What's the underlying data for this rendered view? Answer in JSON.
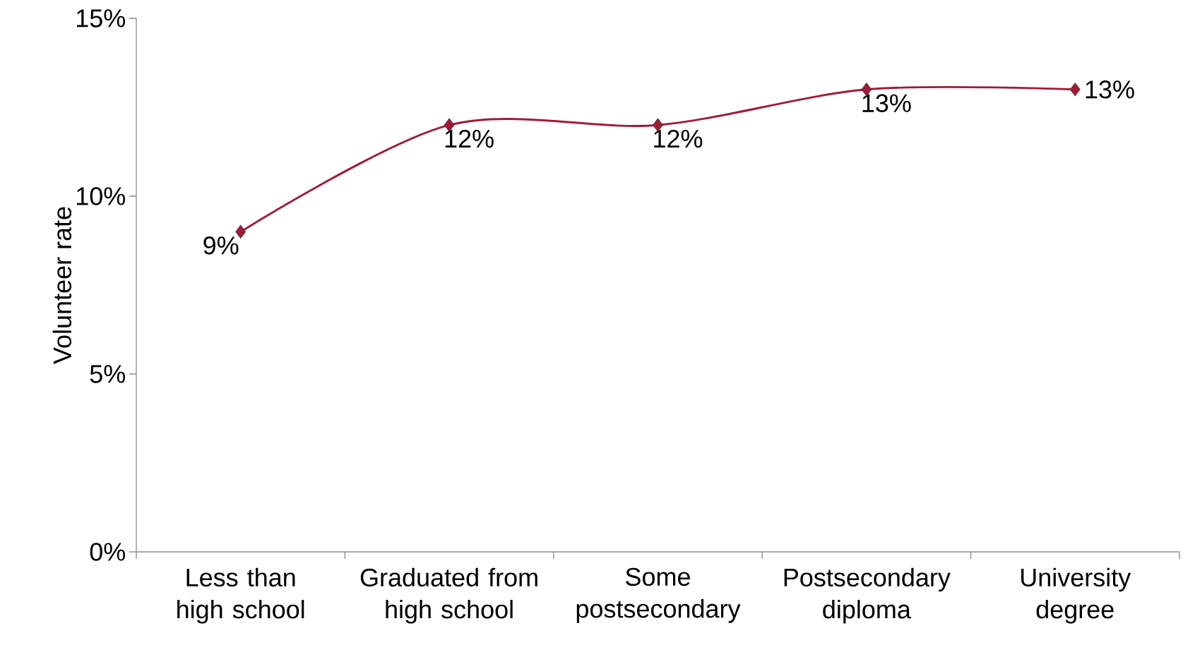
{
  "chart_data": {
    "type": "line",
    "ylabel": "Volunteer rate",
    "categories": [
      "Less than high school",
      "Graduated from high school",
      "Some postsecondary",
      "Postsecondary diploma",
      "University degree"
    ],
    "series": [
      {
        "color": "#a31a36",
        "values": [
          9,
          12,
          12,
          13,
          13
        ],
        "value_labels": [
          "9%",
          "12%",
          "12%",
          "13%",
          "13%"
        ]
      }
    ],
    "ylim": [
      0,
      15
    ],
    "yticks": [
      {
        "value": 0,
        "label": "0%"
      },
      {
        "value": 5,
        "label": "5%"
      },
      {
        "value": 10,
        "label": "10%"
      },
      {
        "value": 15,
        "label": "15%"
      }
    ],
    "marker": "diamond",
    "line_style": "solid",
    "grid": false
  }
}
